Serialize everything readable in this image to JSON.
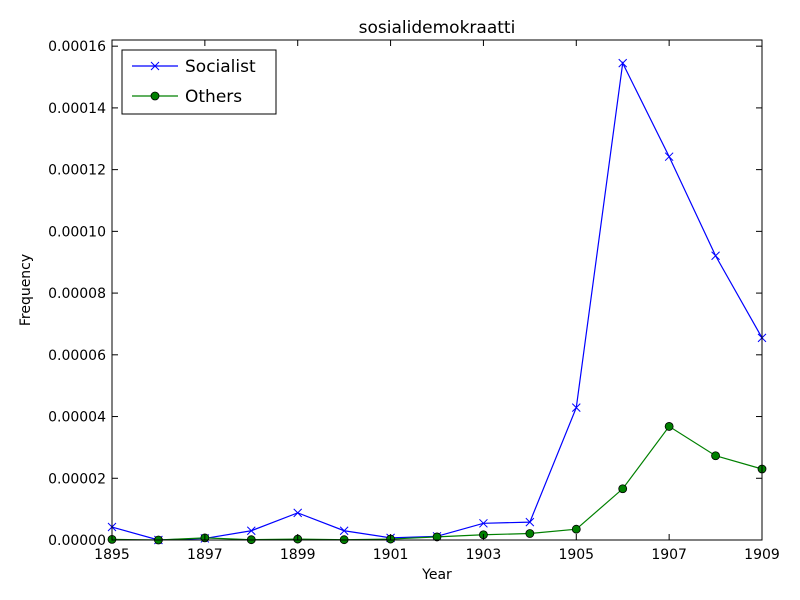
{
  "chart_data": {
    "type": "line",
    "title": "sosialidemokraatti",
    "xlabel": "Year",
    "ylabel": "Frequency",
    "xlim": [
      1895,
      1909
    ],
    "ylim": [
      0,
      0.000162
    ],
    "x": [
      1895,
      1896,
      1897,
      1898,
      1899,
      1900,
      1901,
      1902,
      1903,
      1904,
      1905,
      1906,
      1907,
      1908,
      1909
    ],
    "xticks": [
      "1895",
      "1897",
      "1899",
      "1901",
      "1903",
      "1905",
      "1907",
      "1909"
    ],
    "yticks": [
      "0.00000",
      "0.00002",
      "0.00004",
      "0.00006",
      "0.00008",
      "0.00010",
      "0.00012",
      "0.00014",
      "0.00016"
    ],
    "legend_position": "top-left",
    "series": [
      {
        "name": "Socialist",
        "color": "#0000ff",
        "marker": "x",
        "values": [
          4.2e-06,
          0.0,
          5e-07,
          3e-06,
          8.8e-06,
          3e-06,
          7e-07,
          1.2e-06,
          5.4e-06,
          5.8e-06,
          4.29e-05,
          0.0001545,
          0.0001242,
          9.21e-05,
          6.55e-05
        ]
      },
      {
        "name": "Others",
        "color": "#008000",
        "marker": "o",
        "values": [
          2e-07,
          0.0,
          7e-07,
          1e-07,
          3e-07,
          1e-07,
          3e-07,
          1e-06,
          1.7e-06,
          2.1e-06,
          3.5e-06,
          1.66e-05,
          3.68e-05,
          2.73e-05,
          2.3e-05
        ]
      }
    ]
  }
}
